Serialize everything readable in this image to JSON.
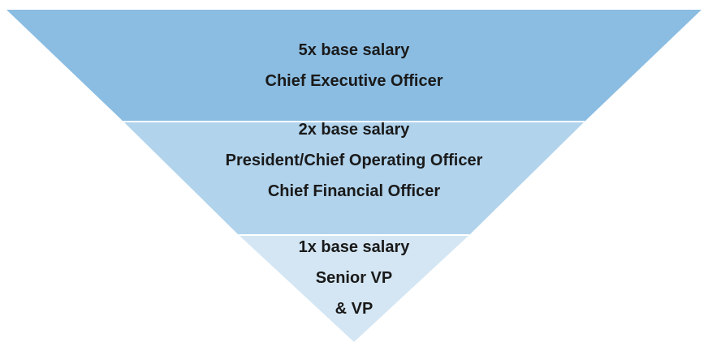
{
  "tiers": [
    {
      "lines": [
        "5x base salary",
        "Chief Executive Officer"
      ]
    },
    {
      "lines": [
        "2x base salary",
        "President/Chief Operating Officer",
        "Chief Financial Officer"
      ]
    },
    {
      "lines": [
        "1x base salary",
        "Senior VP",
        "& VP"
      ]
    }
  ]
}
